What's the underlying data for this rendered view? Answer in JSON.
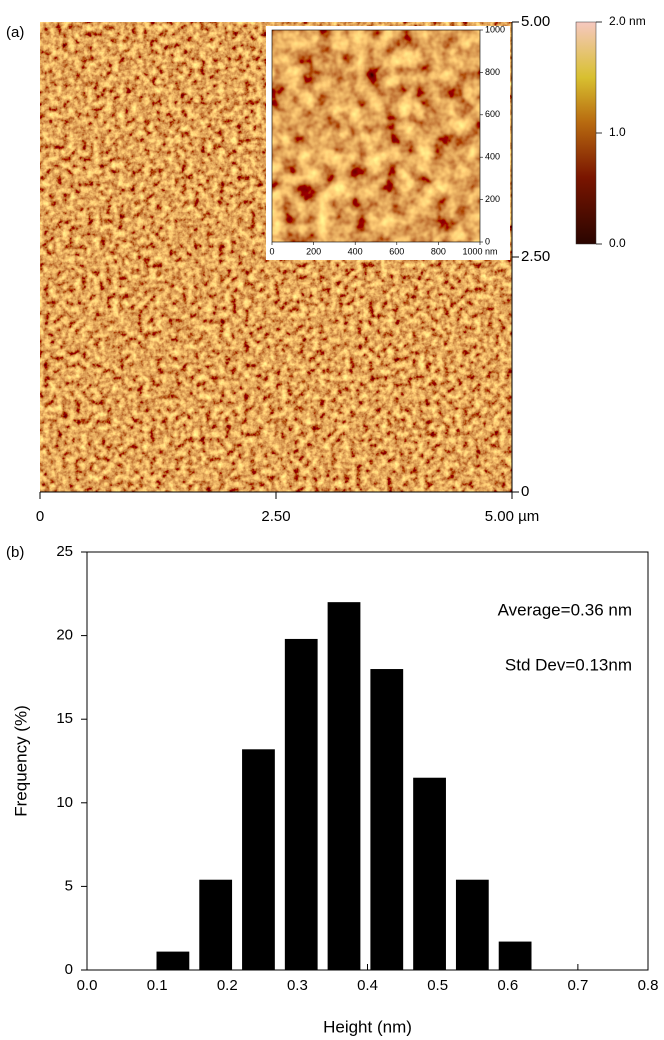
{
  "chart_data": [
    {
      "type": "image",
      "label": "(a)",
      "xlim": [
        0,
        5
      ],
      "xticks": [
        0,
        {
          "value": 2.5,
          "label": "2.50"
        },
        {
          "value": 5,
          "label": "5.00 µm"
        }
      ],
      "ylim": [
        0,
        5
      ],
      "yticks": [
        0,
        {
          "value": 2.5,
          "label": "2.50"
        },
        {
          "value": 5,
          "label": "5.00"
        }
      ],
      "inset": {
        "xlim": [
          0,
          1000
        ],
        "xticks": [
          0,
          200,
          400,
          600,
          800,
          {
            "value": 1000,
            "label": "1000 nm"
          }
        ],
        "ylim": [
          0,
          1000
        ],
        "yticks": [
          0,
          200,
          400,
          600,
          800,
          1000
        ]
      },
      "colorbar": {
        "lim": [
          0,
          2
        ],
        "ticks": [
          {
            "value": 0,
            "label": "0.0"
          },
          {
            "value": 1,
            "label": "1.0"
          },
          {
            "value": 2,
            "label": "2.0 nm"
          }
        ]
      }
    },
    {
      "type": "histogram",
      "label": "(b)",
      "annotations": [
        "Average=0.36 nm",
        "Std Dev=0.13nm"
      ],
      "xlabel": "Height (nm)",
      "ylabel": "Frequency (%)",
      "bins": [
        0.092,
        0.153,
        0.214,
        0.275,
        0.336,
        0.397,
        0.458,
        0.519,
        0.58,
        0.641
      ],
      "values": [
        1.1,
        5.4,
        13.2,
        19.8,
        22.0,
        18.0,
        11.5,
        5.4,
        1.7
      ],
      "color": "#000000",
      "xlim": [
        0,
        0.8
      ],
      "xticks": [
        {
          "value": 0,
          "label": "0.0"
        },
        0.1,
        0.2,
        0.3,
        0.4,
        0.5,
        0.6,
        0.7,
        0.8
      ],
      "ylim": [
        0,
        25
      ],
      "yticks": [
        0,
        5,
        10,
        15,
        20,
        25
      ]
    }
  ]
}
